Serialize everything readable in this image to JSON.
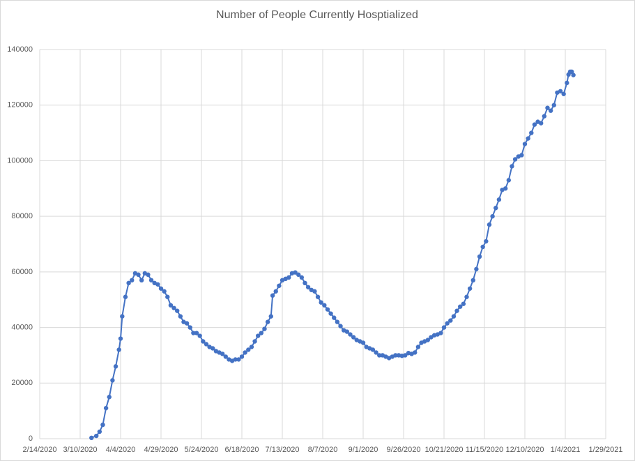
{
  "chart_data": {
    "type": "line",
    "title": "Number of People Currently Hosptialized",
    "x": [
      "3/17/2020",
      "3/20/2020",
      "3/22/2020",
      "3/24/2020",
      "3/26/2020",
      "3/28/2020",
      "3/30/2020",
      "4/1/2020",
      "4/3/2020",
      "4/4/2020",
      "4/5/2020",
      "4/7/2020",
      "4/9/2020",
      "4/11/2020",
      "4/13/2020",
      "4/15/2020",
      "4/17/2020",
      "4/19/2020",
      "4/21/2020",
      "4/23/2020",
      "4/25/2020",
      "4/27/2020",
      "4/29/2020",
      "5/1/2020",
      "5/3/2020",
      "5/5/2020",
      "5/7/2020",
      "5/9/2020",
      "5/11/2020",
      "5/13/2020",
      "5/15/2020",
      "5/17/2020",
      "5/19/2020",
      "5/21/2020",
      "5/23/2020",
      "5/25/2020",
      "5/27/2020",
      "5/29/2020",
      "5/31/2020",
      "6/2/2020",
      "6/4/2020",
      "6/6/2020",
      "6/8/2020",
      "6/10/2020",
      "6/12/2020",
      "6/14/2020",
      "6/16/2020",
      "6/18/2020",
      "6/20/2020",
      "6/22/2020",
      "6/24/2020",
      "6/26/2020",
      "6/28/2020",
      "6/30/2020",
      "7/2/2020",
      "7/4/2020",
      "7/6/2020",
      "7/7/2020",
      "7/9/2020",
      "7/11/2020",
      "7/13/2020",
      "7/15/2020",
      "7/17/2020",
      "7/19/2020",
      "7/21/2020",
      "7/23/2020",
      "7/25/2020",
      "7/27/2020",
      "7/29/2020",
      "7/31/2020",
      "8/2/2020",
      "8/4/2020",
      "8/6/2020",
      "8/8/2020",
      "8/10/2020",
      "8/12/2020",
      "8/14/2020",
      "8/16/2020",
      "8/18/2020",
      "8/20/2020",
      "8/22/2020",
      "8/24/2020",
      "8/26/2020",
      "8/28/2020",
      "8/30/2020",
      "9/1/2020",
      "9/3/2020",
      "9/5/2020",
      "9/7/2020",
      "9/9/2020",
      "9/11/2020",
      "9/13/2020",
      "9/15/2020",
      "9/17/2020",
      "9/19/2020",
      "9/21/2020",
      "9/23/2020",
      "9/25/2020",
      "9/27/2020",
      "9/29/2020",
      "10/1/2020",
      "10/3/2020",
      "10/5/2020",
      "10/7/2020",
      "10/9/2020",
      "10/11/2020",
      "10/13/2020",
      "10/15/2020",
      "10/17/2020",
      "10/19/2020",
      "10/21/2020",
      "10/23/2020",
      "10/25/2020",
      "10/27/2020",
      "10/29/2020",
      "10/31/2020",
      "11/2/2020",
      "11/4/2020",
      "11/6/2020",
      "11/8/2020",
      "11/10/2020",
      "11/12/2020",
      "11/14/2020",
      "11/16/2020",
      "11/18/2020",
      "11/20/2020",
      "11/22/2020",
      "11/24/2020",
      "11/26/2020",
      "11/28/2020",
      "11/30/2020",
      "12/2/2020",
      "12/4/2020",
      "12/6/2020",
      "12/8/2020",
      "12/10/2020",
      "12/12/2020",
      "12/14/2020",
      "12/16/2020",
      "12/18/2020",
      "12/20/2020",
      "12/22/2020",
      "12/24/2020",
      "12/26/2020",
      "12/28/2020",
      "12/30/2020",
      "1/1/2021",
      "1/3/2021",
      "1/5/2021",
      "1/6/2021",
      "1/7/2021",
      "1/8/2021",
      "1/9/2021"
    ],
    "series": [
      {
        "name": "Number of People Currently Hosptialized",
        "color": "#4472c4",
        "values": [
          300,
          1000,
          2500,
          5000,
          11000,
          15000,
          21000,
          26000,
          32000,
          36000,
          44000,
          51000,
          56000,
          57000,
          59500,
          59000,
          57000,
          59500,
          59000,
          57000,
          56000,
          55500,
          54000,
          53000,
          51000,
          48000,
          47000,
          46000,
          44000,
          42000,
          41500,
          40000,
          38000,
          38000,
          37000,
          35000,
          34000,
          33000,
          32500,
          31500,
          31000,
          30500,
          29500,
          28500,
          28000,
          28500,
          28500,
          29500,
          31000,
          32000,
          33000,
          35000,
          37000,
          38000,
          39500,
          42000,
          44000,
          51500,
          53000,
          55000,
          57000,
          57500,
          58000,
          59500,
          59800,
          59000,
          58000,
          56000,
          54500,
          53500,
          53000,
          51000,
          49000,
          48000,
          46500,
          45000,
          43500,
          42000,
          40500,
          39000,
          38500,
          37500,
          36500,
          35500,
          35000,
          34500,
          33000,
          32500,
          32000,
          31000,
          30000,
          30000,
          29500,
          29000,
          29500,
          30000,
          30000,
          29800,
          30000,
          30800,
          30500,
          31000,
          33000,
          34500,
          35000,
          35500,
          36500,
          37200,
          37500,
          38000,
          40000,
          41500,
          42500,
          44000,
          46000,
          47500,
          48500,
          51000,
          54000,
          57000,
          61000,
          65500,
          69000,
          71000,
          77000,
          80000,
          83000,
          86000,
          89500,
          90000,
          93000,
          98000,
          100500,
          101500,
          102000,
          106000,
          108000,
          110000,
          113000,
          114000,
          113500,
          116000,
          119000,
          118000,
          120000,
          124500,
          125000,
          124000,
          128000,
          131000,
          132000,
          132000,
          130800
        ]
      }
    ],
    "xlim": [
      "2/14/2020",
      "1/29/2021"
    ],
    "xticks": [
      "2/14/2020",
      "3/10/2020",
      "4/4/2020",
      "4/29/2020",
      "5/24/2020",
      "6/18/2020",
      "7/13/2020",
      "8/7/2020",
      "9/1/2020",
      "9/26/2020",
      "10/21/2020",
      "11/15/2020",
      "12/10/2020",
      "1/4/2021",
      "1/29/2021"
    ],
    "ylim": [
      0,
      140000
    ],
    "yticks": [
      0,
      20000,
      40000,
      60000,
      80000,
      100000,
      120000,
      140000
    ],
    "grid": true
  }
}
